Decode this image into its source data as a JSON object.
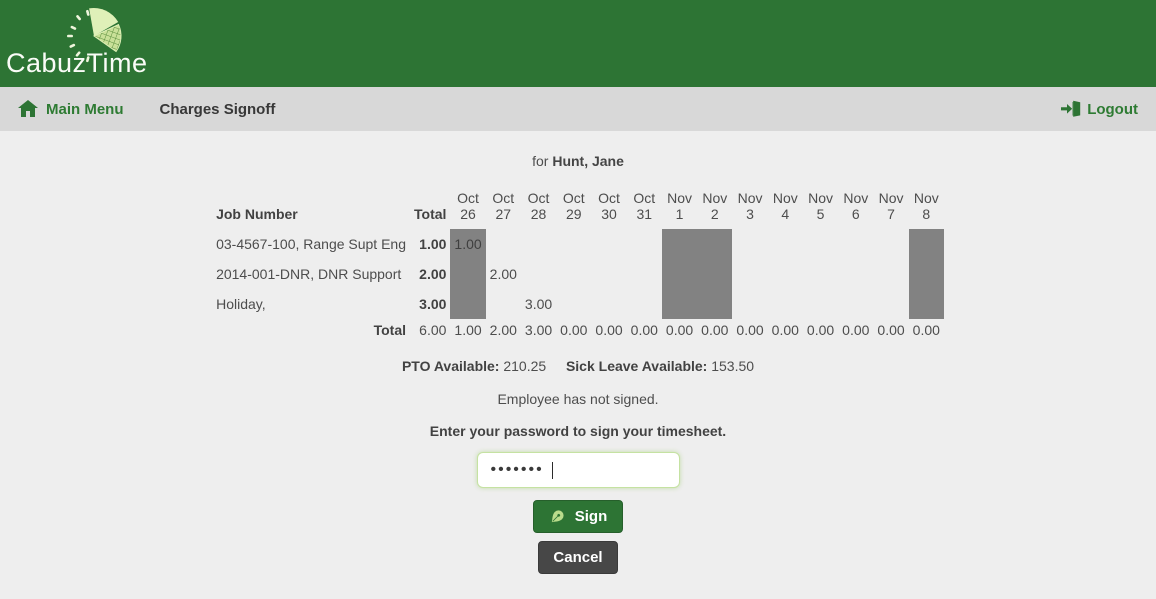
{
  "brand": {
    "name": "CabuzTime"
  },
  "nav": {
    "main_menu": "Main Menu",
    "current_page": "Charges Signoff",
    "logout": "Logout"
  },
  "page": {
    "for_label": "for",
    "employee_name": "Hunt, Jane"
  },
  "timesheet": {
    "job_header": "Job Number",
    "total_header": "Total",
    "columns": [
      {
        "month": "Oct",
        "day": "26",
        "weekend": true
      },
      {
        "month": "Oct",
        "day": "27",
        "weekend": false
      },
      {
        "month": "Oct",
        "day": "28",
        "weekend": false
      },
      {
        "month": "Oct",
        "day": "29",
        "weekend": false
      },
      {
        "month": "Oct",
        "day": "30",
        "weekend": false
      },
      {
        "month": "Oct",
        "day": "31",
        "weekend": false
      },
      {
        "month": "Nov",
        "day": "1",
        "weekend": true
      },
      {
        "month": "Nov",
        "day": "2",
        "weekend": true
      },
      {
        "month": "Nov",
        "day": "3",
        "weekend": false
      },
      {
        "month": "Nov",
        "day": "4",
        "weekend": false
      },
      {
        "month": "Nov",
        "day": "5",
        "weekend": false
      },
      {
        "month": "Nov",
        "day": "6",
        "weekend": false
      },
      {
        "month": "Nov",
        "day": "7",
        "weekend": false
      },
      {
        "month": "Nov",
        "day": "8",
        "weekend": true
      }
    ],
    "rows": [
      {
        "job": "03-4567-100, Range Supt Eng",
        "total": "1.00",
        "values": [
          "1.00",
          "",
          "",
          "",
          "",
          "",
          "",
          "",
          "",
          "",
          "",
          "",
          "",
          ""
        ]
      },
      {
        "job": "2014-001-DNR, DNR Support",
        "total": "2.00",
        "values": [
          "",
          "2.00",
          "",
          "",
          "",
          "",
          "",
          "",
          "",
          "",
          "",
          "",
          "",
          ""
        ]
      },
      {
        "job": "Holiday,",
        "total": "3.00",
        "values": [
          "",
          "",
          "3.00",
          "",
          "",
          "",
          "",
          "",
          "",
          "",
          "",
          "",
          "",
          ""
        ]
      }
    ],
    "totals": {
      "label": "Total",
      "grand": "6.00",
      "values": [
        "1.00",
        "2.00",
        "3.00",
        "0.00",
        "0.00",
        "0.00",
        "0.00",
        "0.00",
        "0.00",
        "0.00",
        "0.00",
        "0.00",
        "0.00",
        "0.00"
      ]
    }
  },
  "leave": {
    "pto_label": "PTO Available:",
    "pto_value": "210.25",
    "sick_label": "Sick Leave Available:",
    "sick_value": "153.50"
  },
  "signoff": {
    "status": "Employee has not signed.",
    "prompt": "Enter your password to sign your timesheet.",
    "password_value": "•••••••",
    "sign_label": "Sign",
    "cancel_label": "Cancel"
  },
  "colors": {
    "header_green": "#2d7434",
    "accent_green": "#2e7b33",
    "navbar_gray": "#d8d8d8",
    "page_bg": "#eeeeee",
    "weekend_gray": "#828282",
    "cancel_gray": "#474747",
    "input_border_green": "#c5e2a2"
  }
}
